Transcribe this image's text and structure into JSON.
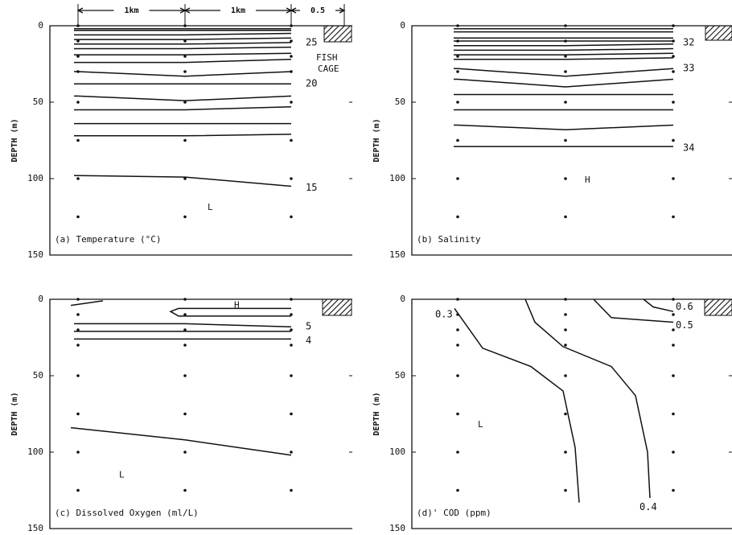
{
  "chart_data": [
    {
      "type": "contour",
      "title": "(a) Temperature (°C)",
      "y_label": "DEPTH (m)",
      "ylim": [
        0,
        150
      ],
      "yticks": [
        0,
        50,
        100,
        150
      ],
      "distance_labels": [
        "1km",
        "1km",
        "0.5"
      ],
      "contour_labels": [
        25,
        20,
        15
      ],
      "annotations": [
        "FISH",
        "CAGE",
        "L"
      ]
    },
    {
      "type": "contour",
      "title": "(b) Salinity",
      "y_label": "DEPTH (m)",
      "ylim": [
        0,
        150
      ],
      "yticks": [
        0,
        50,
        100,
        150
      ],
      "contour_labels": [
        32,
        33,
        34
      ],
      "annotations": [
        "H"
      ]
    },
    {
      "type": "contour",
      "title": "(c)  Dissolved Oxygen (ml/L)",
      "y_label": "DEPTH (m)",
      "ylim": [
        0,
        150
      ],
      "yticks": [
        0,
        50,
        100,
        150
      ],
      "contour_labels": [
        5,
        4
      ],
      "annotations": [
        "H",
        "L"
      ]
    },
    {
      "type": "contour",
      "title": "(d)' COD (ppm)",
      "y_label": "DEPTH (m)",
      "ylim": [
        0,
        150
      ],
      "yticks": [
        0,
        50,
        100,
        150
      ],
      "contour_labels": [
        0.6,
        0.5,
        0.3,
        0.4
      ],
      "annotations": [
        "L"
      ]
    }
  ]
}
